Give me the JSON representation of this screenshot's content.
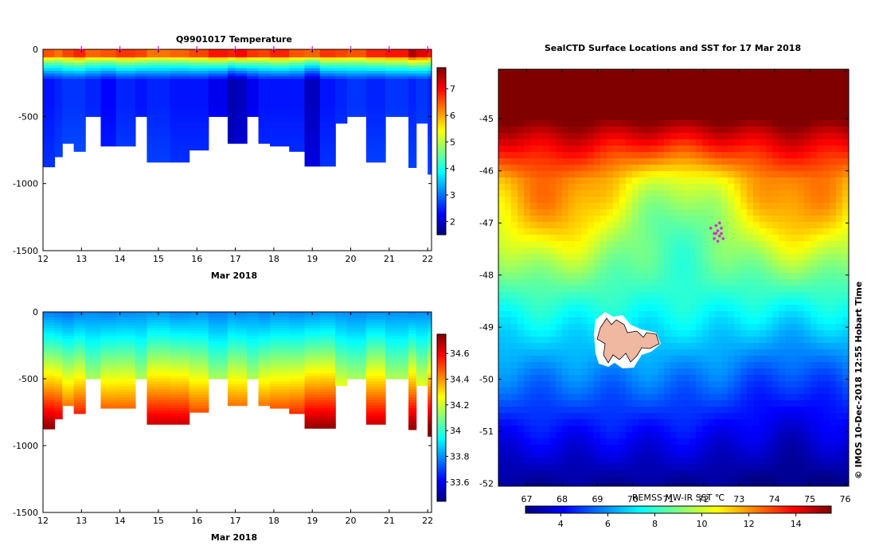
{
  "colors": {
    "jet_scale": [
      "#00007f",
      "#0000ff",
      "#007fff",
      "#00ffff",
      "#7fff7f",
      "#ffff00",
      "#ff7f00",
      "#ff0000",
      "#7f0000"
    ],
    "marker": "#cc33cc",
    "island_fill": "#f0b8a0"
  },
  "chart_data": [
    {
      "type": "heatmap",
      "title": "Q9901017  Temperature",
      "xlabel": "Mar 2018",
      "ylabel": "",
      "xlim": [
        12,
        22.1
      ],
      "ylim": [
        -1500,
        0
      ],
      "xticks": [
        "12",
        "13",
        "14",
        "15",
        "16",
        "17",
        "18",
        "19",
        "20",
        "21",
        "22"
      ],
      "yticks": [
        "0",
        "-500",
        "-1000",
        "-1500"
      ],
      "colorbar": {
        "min": 1.5,
        "max": 7.8,
        "ticks": [
          "2",
          "3",
          "4",
          "5",
          "6",
          "7"
        ]
      },
      "profile_days": [
        12.0,
        12.3,
        12.5,
        12.8,
        13.1,
        13.5,
        13.9,
        14.4,
        14.7,
        15.3,
        15.8,
        16.3,
        16.8,
        17.0,
        17.3,
        17.6,
        17.9,
        18.4,
        18.8,
        19.2,
        19.6,
        19.9,
        20.4,
        20.9,
        21.5,
        21.7,
        22.0
      ],
      "profile_max_depth": [
        875,
        800,
        700,
        760,
        500,
        720,
        720,
        500,
        840,
        840,
        750,
        500,
        700,
        700,
        500,
        700,
        720,
        760,
        870,
        870,
        550,
        500,
        840,
        500,
        880,
        550,
        930
      ],
      "profile_markers_days": [
        13.0,
        14.0,
        15.0,
        16.0,
        17.0,
        18.0,
        19.0,
        20.0,
        21.0,
        22.0
      ],
      "series": [
        {
          "name": "surface temperature (°C)",
          "values": [
            6.5,
            6.3,
            6.6,
            6.8,
            6.4,
            6.5,
            6.7,
            6.6,
            6.3,
            6.4,
            6.6,
            6.9,
            6.8,
            7.0,
            6.7,
            6.6,
            6.8,
            6.5,
            6.4,
            6.7,
            6.6,
            6.5,
            6.8,
            6.9,
            7.5,
            7.2,
            6.9
          ]
        },
        {
          "name": "minimum temperature (°C)",
          "values": [
            2.4,
            2.5,
            2.6,
            2.6,
            2.5,
            2.3,
            2.5,
            2.4,
            2.5,
            2.4,
            2.4,
            2.2,
            1.8,
            1.9,
            2.2,
            2.4,
            2.4,
            2.4,
            1.9,
            2.4,
            2.5,
            2.6,
            2.5,
            2.6,
            2.5,
            2.6,
            2.5
          ]
        }
      ]
    },
    {
      "type": "heatmap",
      "title": "",
      "xlabel": "Mar 2018",
      "ylabel": "",
      "xlim": [
        12,
        22.1
      ],
      "ylim": [
        -1500,
        0
      ],
      "xticks": [
        "12",
        "13",
        "14",
        "15",
        "16",
        "17",
        "18",
        "19",
        "20",
        "21",
        "22"
      ],
      "yticks": [
        "0",
        "-500",
        "-1000",
        "-1500"
      ],
      "colorbar": {
        "min": 33.45,
        "max": 34.75,
        "ticks": [
          "33.6",
          "33.8",
          "34",
          "34.2",
          "34.4",
          "34.6"
        ]
      },
      "series": [
        {
          "name": "surface salinity (psu)",
          "values": [
            33.78,
            33.77,
            33.76,
            33.78,
            33.79,
            33.78,
            33.79,
            33.8,
            33.81,
            33.79,
            33.8,
            33.78,
            33.8,
            33.79,
            33.8,
            33.78,
            33.8,
            33.79,
            33.8,
            33.81,
            33.8,
            33.79,
            33.8,
            33.8,
            33.79,
            33.8,
            33.79
          ]
        },
        {
          "name": "deep salinity (psu)",
          "values": [
            34.72,
            34.7,
            34.6,
            34.66,
            34.45,
            34.6,
            34.6,
            34.45,
            34.68,
            34.68,
            34.6,
            34.45,
            34.6,
            34.6,
            34.45,
            34.6,
            34.62,
            34.64,
            34.72,
            34.72,
            34.5,
            34.45,
            34.68,
            34.45,
            34.72,
            34.5,
            34.74
          ]
        }
      ]
    },
    {
      "type": "heatmap",
      "title": "SealCTD Surface Locations and SST for 17 Mar 2018",
      "xlabel": "REMSS MW-IR SST ℃",
      "xlim": [
        66.2,
        76.1
      ],
      "ylim": [
        -52.05,
        -44.05
      ],
      "xticks": [
        "67",
        "68",
        "69",
        "70",
        "71",
        "72",
        "73",
        "74",
        "75",
        "76"
      ],
      "yticks": [
        "-45",
        "-46",
        "-47",
        "-48",
        "-49",
        "-50",
        "-51",
        "-52"
      ],
      "colorbar": {
        "min": 2.5,
        "max": 15.5,
        "ticks": [
          "4",
          "6",
          "8",
          "10",
          "12",
          "14"
        ]
      },
      "surface_locations": {
        "lon": [
          72.2,
          72.3,
          72.35,
          72.4,
          72.45,
          72.5,
          72.3,
          72.4,
          72.5,
          72.55,
          72.35,
          72.45
        ],
        "lat": [
          -47.1,
          -47.2,
          -47.05,
          -47.15,
          -47.25,
          -47.1,
          -47.3,
          -47.35,
          -47.2,
          -47.3,
          -47.2,
          -47.0
        ]
      },
      "side_label": "© IMOS 10-Dec-2018 12:55 Hobart Time"
    }
  ]
}
